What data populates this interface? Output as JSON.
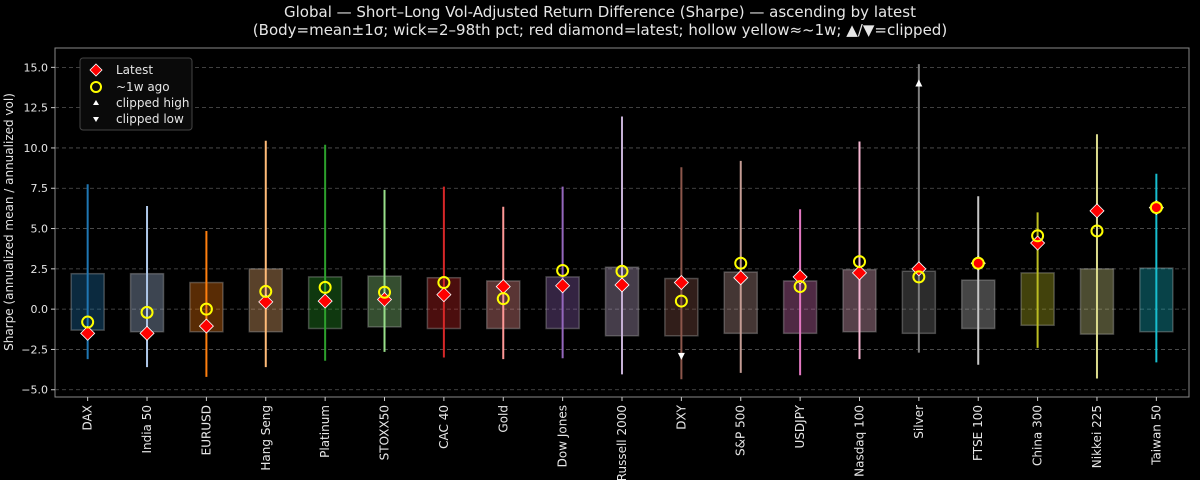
{
  "chart_data": {
    "type": "candlestick-range",
    "title": "Global — Short–Long Vol-Adjusted Return Difference (Sharpe) — ascending by latest",
    "subtitle": "(Body=mean±1σ; wick=2–98th pct; red diamond=latest; hollow yellow≈~1w; ▲/▼=clipped)",
    "xlabel": "",
    "ylabel": "Sharpe (annualized mean / annualized vol)",
    "ylim": [
      -5.45,
      16.2
    ],
    "yticks": [
      -5.0,
      -2.5,
      0.0,
      2.5,
      5.0,
      7.5,
      10.0,
      12.5,
      15.0
    ],
    "ytick_labels": [
      "−5.0",
      "−2.5",
      "0.0",
      "2.5",
      "5.0",
      "7.5",
      "10.0",
      "12.5",
      "15.0"
    ],
    "grid": "horizontal dashed",
    "legend": {
      "placement": "top-left",
      "entries": [
        {
          "label": "Latest",
          "marker": "red-diamond"
        },
        {
          "label": "~1w ago",
          "marker": "hollow-yellow-circle"
        },
        {
          "label": "clipped high",
          "marker": "white-triangle-up"
        },
        {
          "label": "clipped low",
          "marker": "white-triangle-down"
        }
      ]
    },
    "categories": [
      "DAX",
      "India 50",
      "EURUSD",
      "Hang Seng",
      "Platinum",
      "STOXX50",
      "CAC 40",
      "Gold",
      "Dow Jones",
      "Russell 2000",
      "DXY",
      "S&P 500",
      "USDJPY",
      "Nasdaq 100",
      "Silver",
      "FTSE 100",
      "China 300",
      "Nikkei 225",
      "Taiwan 50"
    ],
    "colors": [
      "#1f77b4",
      "#aec7e8",
      "#ff7f0e",
      "#ffbb78",
      "#2ca02c",
      "#98df8a",
      "#d62728",
      "#ff9896",
      "#9467bd",
      "#c5b0d5",
      "#8c564b",
      "#c49c94",
      "#e377c2",
      "#f7b6d2",
      "#7f7f7f",
      "#c7c7c7",
      "#bcbd22",
      "#dbdb8d",
      "#17becf"
    ],
    "body_high": [
      2.2,
      2.2,
      1.65,
      2.5,
      2.0,
      2.05,
      1.95,
      1.75,
      2.0,
      2.6,
      1.9,
      2.3,
      1.75,
      2.45,
      2.35,
      1.8,
      2.25,
      2.5,
      2.55
    ],
    "body_low": [
      -1.3,
      -1.4,
      -1.4,
      -1.4,
      -1.2,
      -1.1,
      -1.2,
      -1.2,
      -1.2,
      -1.65,
      -1.65,
      -1.5,
      -1.5,
      -1.4,
      -1.5,
      -1.2,
      -1.0,
      -1.55,
      -1.4
    ],
    "wick_high": [
      7.75,
      6.4,
      4.85,
      10.45,
      10.2,
      7.4,
      7.6,
      6.35,
      7.6,
      11.95,
      8.8,
      9.2,
      6.2,
      10.4,
      15.2,
      7.0,
      6.0,
      10.85,
      8.4
    ],
    "wick_low": [
      -3.1,
      -3.6,
      -4.2,
      -3.6,
      -3.2,
      -2.65,
      -3.0,
      -3.1,
      -3.05,
      -4.05,
      -4.35,
      -3.95,
      -4.1,
      -3.1,
      -2.7,
      -3.45,
      -2.4,
      -4.3,
      -3.3
    ],
    "latest": [
      -1.5,
      -1.5,
      -1.05,
      0.45,
      0.5,
      0.6,
      0.9,
      1.4,
      1.45,
      1.5,
      1.65,
      1.95,
      2.0,
      2.25,
      2.5,
      2.85,
      4.1,
      6.1,
      6.3
    ],
    "week_ago": [
      -0.8,
      -0.2,
      0.0,
      1.1,
      1.35,
      1.05,
      1.65,
      0.65,
      2.4,
      2.35,
      0.5,
      2.85,
      1.4,
      2.95,
      2.0,
      2.85,
      4.55,
      4.85,
      6.3
    ],
    "clipped_high": [
      null,
      null,
      null,
      null,
      null,
      null,
      null,
      null,
      null,
      null,
      null,
      null,
      null,
      null,
      14.0,
      null,
      null,
      null,
      null
    ],
    "clipped_low": [
      null,
      null,
      null,
      null,
      null,
      null,
      null,
      null,
      null,
      null,
      -2.9,
      null,
      null,
      null,
      null,
      null,
      null,
      null,
      null
    ]
  }
}
